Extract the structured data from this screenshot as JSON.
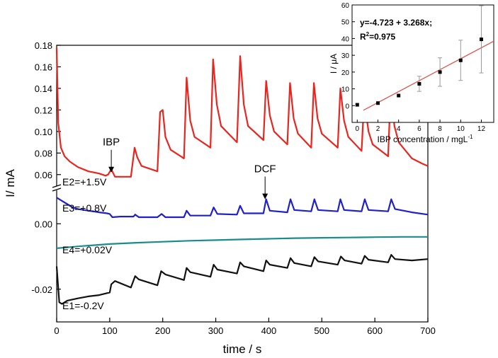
{
  "chart_data": [
    {
      "type": "line",
      "xlabel": "time / s",
      "ylabel": "I/ mA",
      "xlim": [
        0,
        700
      ],
      "x_ticks": [
        0,
        100,
        200,
        300,
        400,
        500,
        600,
        700
      ],
      "upper_ylim": [
        0.05,
        0.18
      ],
      "upper_y_ticks": [
        "0.06",
        "0.08",
        "0.10",
        "0.12",
        "0.14",
        "0.16",
        "0.18"
      ],
      "lower_ylim": [
        -0.03,
        0.01
      ],
      "lower_y_ticks": [
        "0.00",
        "-0.02"
      ],
      "axis_break": true,
      "grid": false,
      "series": [
        {
          "name": "E2=+1.5V",
          "panel": "upper",
          "color": "#e8251f",
          "x": [
            0,
            3,
            8,
            15,
            25,
            40,
            60,
            80,
            92,
            97,
            103,
            110,
            140,
            147,
            152,
            160,
            190,
            195,
            200,
            205,
            215,
            240,
            245,
            252,
            260,
            290,
            295,
            302,
            310,
            340,
            346,
            353,
            361,
            390,
            395,
            402,
            410,
            435,
            440,
            447,
            455,
            480,
            485,
            492,
            500,
            530,
            535,
            542,
            550,
            575,
            580,
            588,
            596,
            625,
            630,
            637,
            645,
            670,
            690,
            700
          ],
          "y": [
            0.178,
            0.108,
            0.085,
            0.077,
            0.072,
            0.067,
            0.063,
            0.061,
            0.059,
            0.06,
            0.065,
            0.058,
            0.058,
            0.085,
            0.076,
            0.068,
            0.063,
            0.118,
            0.12,
            0.095,
            0.083,
            0.075,
            0.15,
            0.11,
            0.095,
            0.085,
            0.167,
            0.125,
            0.105,
            0.09,
            0.17,
            0.125,
            0.105,
            0.092,
            0.147,
            0.115,
            0.1,
            0.088,
            0.145,
            0.112,
            0.098,
            0.085,
            0.145,
            0.112,
            0.098,
            0.085,
            0.14,
            0.11,
            0.095,
            0.082,
            0.13,
            0.1,
            0.088,
            0.077,
            0.14,
            0.105,
            0.09,
            0.075,
            0.07,
            0.068
          ]
        },
        {
          "name": "E3=+0.8V",
          "panel": "lower",
          "color": "#2020c8",
          "x": [
            0,
            10,
            20,
            30,
            40,
            60,
            80,
            95,
            100,
            105,
            120,
            145,
            148,
            155,
            190,
            198,
            205,
            240,
            245,
            252,
            290,
            296,
            303,
            340,
            346,
            353,
            390,
            395,
            402,
            435,
            441,
            448,
            480,
            486,
            493,
            530,
            535,
            542,
            575,
            581,
            588,
            625,
            631,
            638,
            670,
            700
          ],
          "y": [
            0.008,
            0.007,
            0.006,
            0.005,
            0.0045,
            0.004,
            0.0035,
            0.0032,
            0.003,
            0.002,
            0.0022,
            0.0022,
            0.0028,
            0.002,
            0.002,
            0.003,
            0.002,
            0.002,
            0.004,
            0.0025,
            0.0025,
            0.005,
            0.003,
            0.0028,
            0.0055,
            0.0032,
            0.0032,
            0.0075,
            0.004,
            0.0035,
            0.0075,
            0.0042,
            0.0038,
            0.0075,
            0.0042,
            0.0038,
            0.0075,
            0.0042,
            0.0038,
            0.0075,
            0.0042,
            0.0038,
            0.0075,
            0.0045,
            0.0035,
            0.0028
          ]
        },
        {
          "name": "E4=+0.02V",
          "panel": "lower",
          "color": "#1a8c8c",
          "x": [
            0,
            50,
            100,
            150,
            200,
            250,
            300,
            350,
            400,
            450,
            500,
            550,
            600,
            650,
            700
          ],
          "y": [
            -0.0075,
            -0.0068,
            -0.0062,
            -0.0058,
            -0.0055,
            -0.0052,
            -0.005,
            -0.0048,
            -0.0046,
            -0.0044,
            -0.0043,
            -0.0042,
            -0.0041,
            -0.004,
            -0.004
          ]
        },
        {
          "name": "E1=-0.2V",
          "panel": "lower",
          "color": "#111111",
          "x": [
            0,
            5,
            10,
            20,
            40,
            60,
            80,
            95,
            100,
            103,
            110,
            140,
            148,
            155,
            190,
            197,
            205,
            240,
            245,
            252,
            290,
            296,
            303,
            340,
            346,
            353,
            390,
            395,
            402,
            435,
            441,
            448,
            480,
            486,
            493,
            530,
            536,
            543,
            575,
            581,
            588,
            625,
            631,
            638,
            670,
            700
          ],
          "y": [
            -0.013,
            -0.024,
            -0.0245,
            -0.0235,
            -0.0228,
            -0.0222,
            -0.0218,
            -0.0212,
            -0.021,
            -0.0185,
            -0.0175,
            -0.0195,
            -0.016,
            -0.017,
            -0.0188,
            -0.0145,
            -0.0155,
            -0.0172,
            -0.0135,
            -0.0148,
            -0.0162,
            -0.0125,
            -0.014,
            -0.0152,
            -0.0118,
            -0.013,
            -0.0145,
            -0.0112,
            -0.0125,
            -0.0135,
            -0.0105,
            -0.012,
            -0.013,
            -0.0102,
            -0.0115,
            -0.0125,
            -0.01,
            -0.0112,
            -0.0122,
            -0.0098,
            -0.011,
            -0.0118,
            -0.0095,
            -0.0108,
            -0.0112,
            -0.0108
          ]
        }
      ],
      "annotations": [
        {
          "text": "IBP",
          "x": 103,
          "panel": "upper",
          "y": 0.062
        },
        {
          "text": "DCF",
          "x": 393,
          "panel": "lower",
          "y": 0.0075
        }
      ]
    },
    {
      "type": "scatter",
      "xlabel": "IBP concentration / mgL",
      "xlabel_superscript": "-1",
      "ylabel": "I / μA",
      "xlim": [
        -0.5,
        13.2
      ],
      "ylim": [
        -10,
        60
      ],
      "x_ticks": [
        0,
        2,
        4,
        6,
        8,
        10,
        12
      ],
      "y_ticks": [
        0,
        10,
        20,
        30,
        40,
        50,
        60
      ],
      "equation": "y=-4.723 + 3.268x;",
      "r2_label": "R",
      "r2_superscript": "2",
      "r2_value": "=0.975",
      "fit": {
        "intercept": -4.723,
        "slope": 3.268,
        "color": "#d9534f"
      },
      "x": [
        0,
        2,
        4,
        6,
        8,
        10,
        12
      ],
      "y": [
        0.5,
        1.5,
        6,
        13,
        20,
        27,
        39.5
      ],
      "yerr": [
        0,
        0,
        0,
        4.5,
        8.5,
        12,
        20
      ]
    }
  ]
}
